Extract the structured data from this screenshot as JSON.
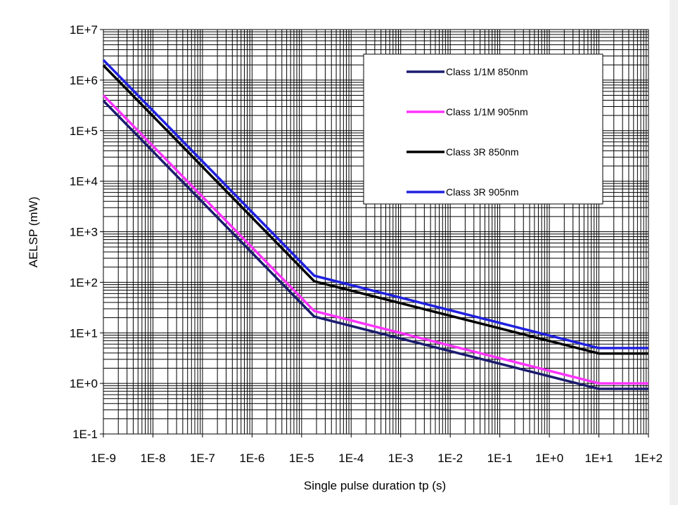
{
  "chart_data": {
    "type": "line",
    "title": "",
    "xlabel": "Single pulse duration tp (s)",
    "ylabel": "AELSP (mW)",
    "x_scale": "log",
    "y_scale": "log",
    "xlim": [
      1e-09,
      100
    ],
    "ylim": [
      0.1,
      10000000
    ],
    "grid": true,
    "legend_position": "top-right",
    "x_tick_labels": [
      "1E-9",
      "1E-8",
      "1E-7",
      "1E-6",
      "1E-5",
      "1E-4",
      "1E-3",
      "1E-2",
      "1E-1",
      "1E+0",
      "1E+1",
      "1E+2"
    ],
    "y_tick_labels": [
      "1E+7",
      "1E+6",
      "1E+5",
      "1E+4",
      "1E+3",
      "1E+2",
      "1E+1",
      "1E+0",
      "1E-1"
    ],
    "series": [
      {
        "name": "Class 1/1M 850nm",
        "color": "#1b1b6e",
        "x": [
          1e-09,
          1.8e-05,
          10,
          100
        ],
        "y": [
          390000,
          21,
          0.78,
          0.78
        ]
      },
      {
        "name": "Class 1/1M 905nm",
        "color": "#ff33ff",
        "x": [
          1e-09,
          1.8e-05,
          10,
          100
        ],
        "y": [
          500000,
          27,
          1.0,
          1.0
        ]
      },
      {
        "name": "Class 3R 850nm",
        "color": "#000000",
        "x": [
          1e-09,
          1.8e-05,
          10,
          100
        ],
        "y": [
          1950000,
          105,
          3.9,
          3.9
        ]
      },
      {
        "name": "Class 3R 905nm",
        "color": "#2020e0",
        "x": [
          1e-09,
          1.8e-05,
          10,
          100
        ],
        "y": [
          2500000,
          135,
          5.0,
          5.0
        ]
      }
    ]
  }
}
